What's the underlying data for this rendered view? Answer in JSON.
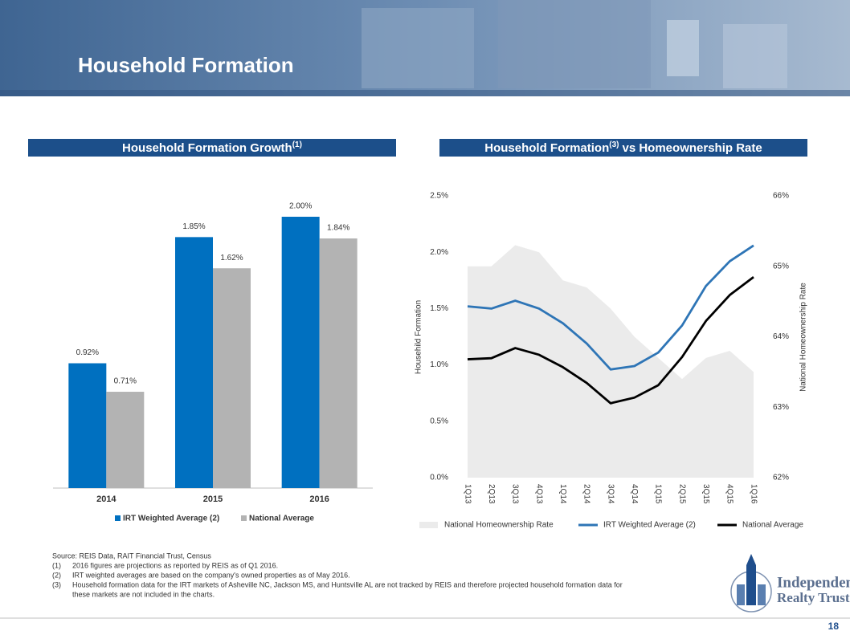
{
  "header": {
    "title": "Household Formation"
  },
  "chart_data": [
    {
      "type": "bar",
      "title_parts": [
        "Household Formation Growth",
        "(1)"
      ],
      "categories": [
        "2014",
        "2015",
        "2016"
      ],
      "series": [
        {
          "name": "IRT Weighted Average (2)",
          "color": "#0070c0",
          "values": [
            0.92,
            1.85,
            2.0
          ],
          "value_labels": [
            "0.92%",
            "1.85%",
            "2.00%"
          ]
        },
        {
          "name": "National Average",
          "color": "#b3b3b3",
          "values": [
            0.71,
            1.62,
            1.84
          ],
          "value_labels": [
            "0.71%",
            "1.62%",
            "1.84%"
          ]
        }
      ],
      "legend": "bottom"
    },
    {
      "type": "line",
      "title_parts": [
        "Household Formation",
        "(3)",
        "vs Homeownership Rate"
      ],
      "categories": [
        "1Q13",
        "2Q13",
        "3Q13",
        "4Q13",
        "1Q14",
        "2Q14",
        "3Q14",
        "4Q14",
        "1Q15",
        "2Q15",
        "3Q15",
        "4Q15",
        "1Q16"
      ],
      "ylabel": "Househild Formation",
      "y2label": "National Homeownership Rate",
      "ylim": [
        0,
        2.5
      ],
      "yticks": [
        {
          "value": 0,
          "label": "0.0%"
        },
        {
          "value": 0.5,
          "label": "0.5%"
        },
        {
          "value": 1,
          "label": "1.0%"
        },
        {
          "value": 1.5,
          "label": "1.5%"
        },
        {
          "value": 2,
          "label": "2.0%"
        },
        {
          "value": 2.5,
          "label": "2.5%"
        }
      ],
      "y2lim": [
        62,
        66
      ],
      "y2ticks": [
        {
          "value": 62,
          "label": "62%"
        },
        {
          "value": 63,
          "label": "63%"
        },
        {
          "value": 64,
          "label": "64%"
        },
        {
          "value": 65,
          "label": "65%"
        },
        {
          "value": 66,
          "label": "66%"
        }
      ],
      "series": [
        {
          "name": "National Homeownership Rate",
          "color": "#ebebeb",
          "style": "area",
          "axis": "y2",
          "values": [
            65.0,
            65.0,
            65.3,
            65.2,
            64.8,
            64.7,
            64.4,
            64.0,
            63.7,
            63.4,
            63.7,
            63.8,
            63.5
          ]
        },
        {
          "name": "IRT Weighted Average (2)",
          "color": "#2e75b6",
          "style": "line",
          "values": [
            1.52,
            1.5,
            1.57,
            1.5,
            1.37,
            1.19,
            0.96,
            0.99,
            1.11,
            1.35,
            1.7,
            1.92,
            2.06
          ]
        },
        {
          "name": "National Average",
          "color": "#000000",
          "style": "line",
          "values": [
            1.05,
            1.06,
            1.15,
            1.09,
            0.98,
            0.84,
            0.66,
            0.71,
            0.82,
            1.07,
            1.39,
            1.62,
            1.78
          ]
        }
      ],
      "legend": "bottom"
    }
  ],
  "footnotes": {
    "source": "Source: REIS Data, RAIT Financial Trust, Census",
    "notes": [
      {
        "marker": "(1)",
        "lines": [
          "2016 figures are projections as reported by REIS as of Q1 2016."
        ]
      },
      {
        "marker": "(2)",
        "lines": [
          "IRT weighted averages are based on the company's owned properties as of May 2016."
        ]
      },
      {
        "marker": "(3)",
        "lines": [
          "Household formation data for the IRT markets of Asheville NC, Jackson MS, and Huntsville AL are not tracked by REIS and therefore projected household formation data for",
          "these markets are not included in the charts."
        ]
      }
    ]
  },
  "logo": {
    "line1": "Independence",
    "line2": "Realty Trust"
  },
  "page_number": 18
}
